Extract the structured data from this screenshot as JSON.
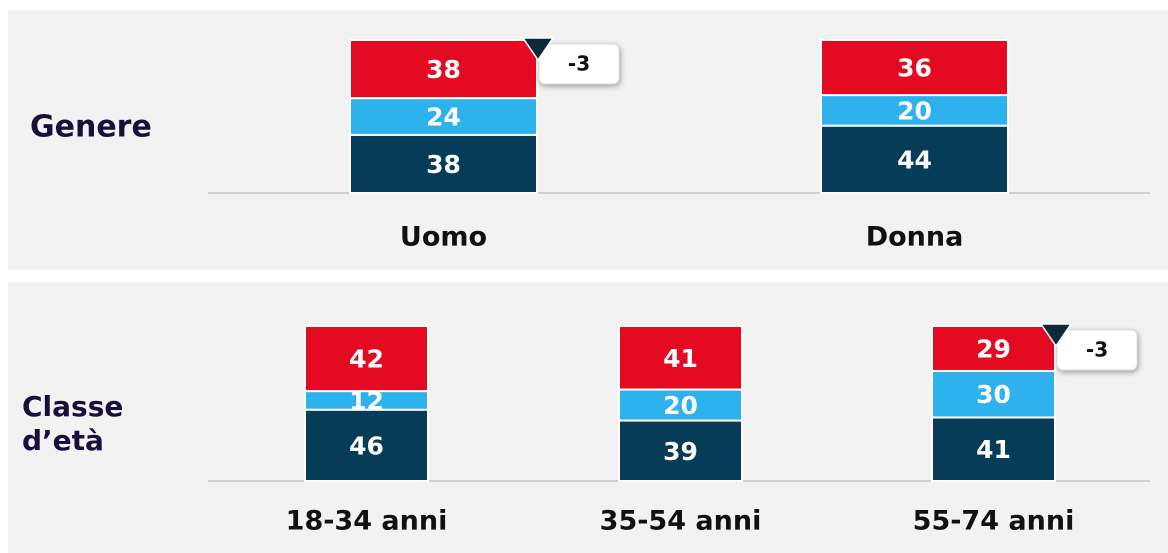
{
  "chart_data": [
    {
      "type": "bar",
      "stacked": true,
      "title": "Genere",
      "categories": [
        "Uomo",
        "Donna"
      ],
      "series": [
        {
          "color": "#063c58",
          "values": [
            38,
            44
          ]
        },
        {
          "color": "#2eb2ee",
          "values": [
            24,
            20
          ]
        },
        {
          "color": "#e30a22",
          "values": [
            38,
            36
          ]
        }
      ],
      "ylim": [
        0,
        100
      ],
      "annotations": [
        {
          "category": "Uomo",
          "text": "-3"
        }
      ]
    },
    {
      "type": "bar",
      "stacked": true,
      "title": "Classe d’età",
      "categories": [
        "18-34 anni",
        "35-54 anni",
        "55-74 anni"
      ],
      "series": [
        {
          "color": "#063c58",
          "values": [
            46,
            39,
            41
          ]
        },
        {
          "color": "#2eb2ee",
          "values": [
            12,
            20,
            30
          ]
        },
        {
          "color": "#e30a22",
          "values": [
            42,
            41,
            29
          ]
        }
      ],
      "ylim": [
        0,
        100
      ],
      "annotations": [
        {
          "category": "55-74 anni",
          "text": "-3"
        }
      ]
    }
  ]
}
